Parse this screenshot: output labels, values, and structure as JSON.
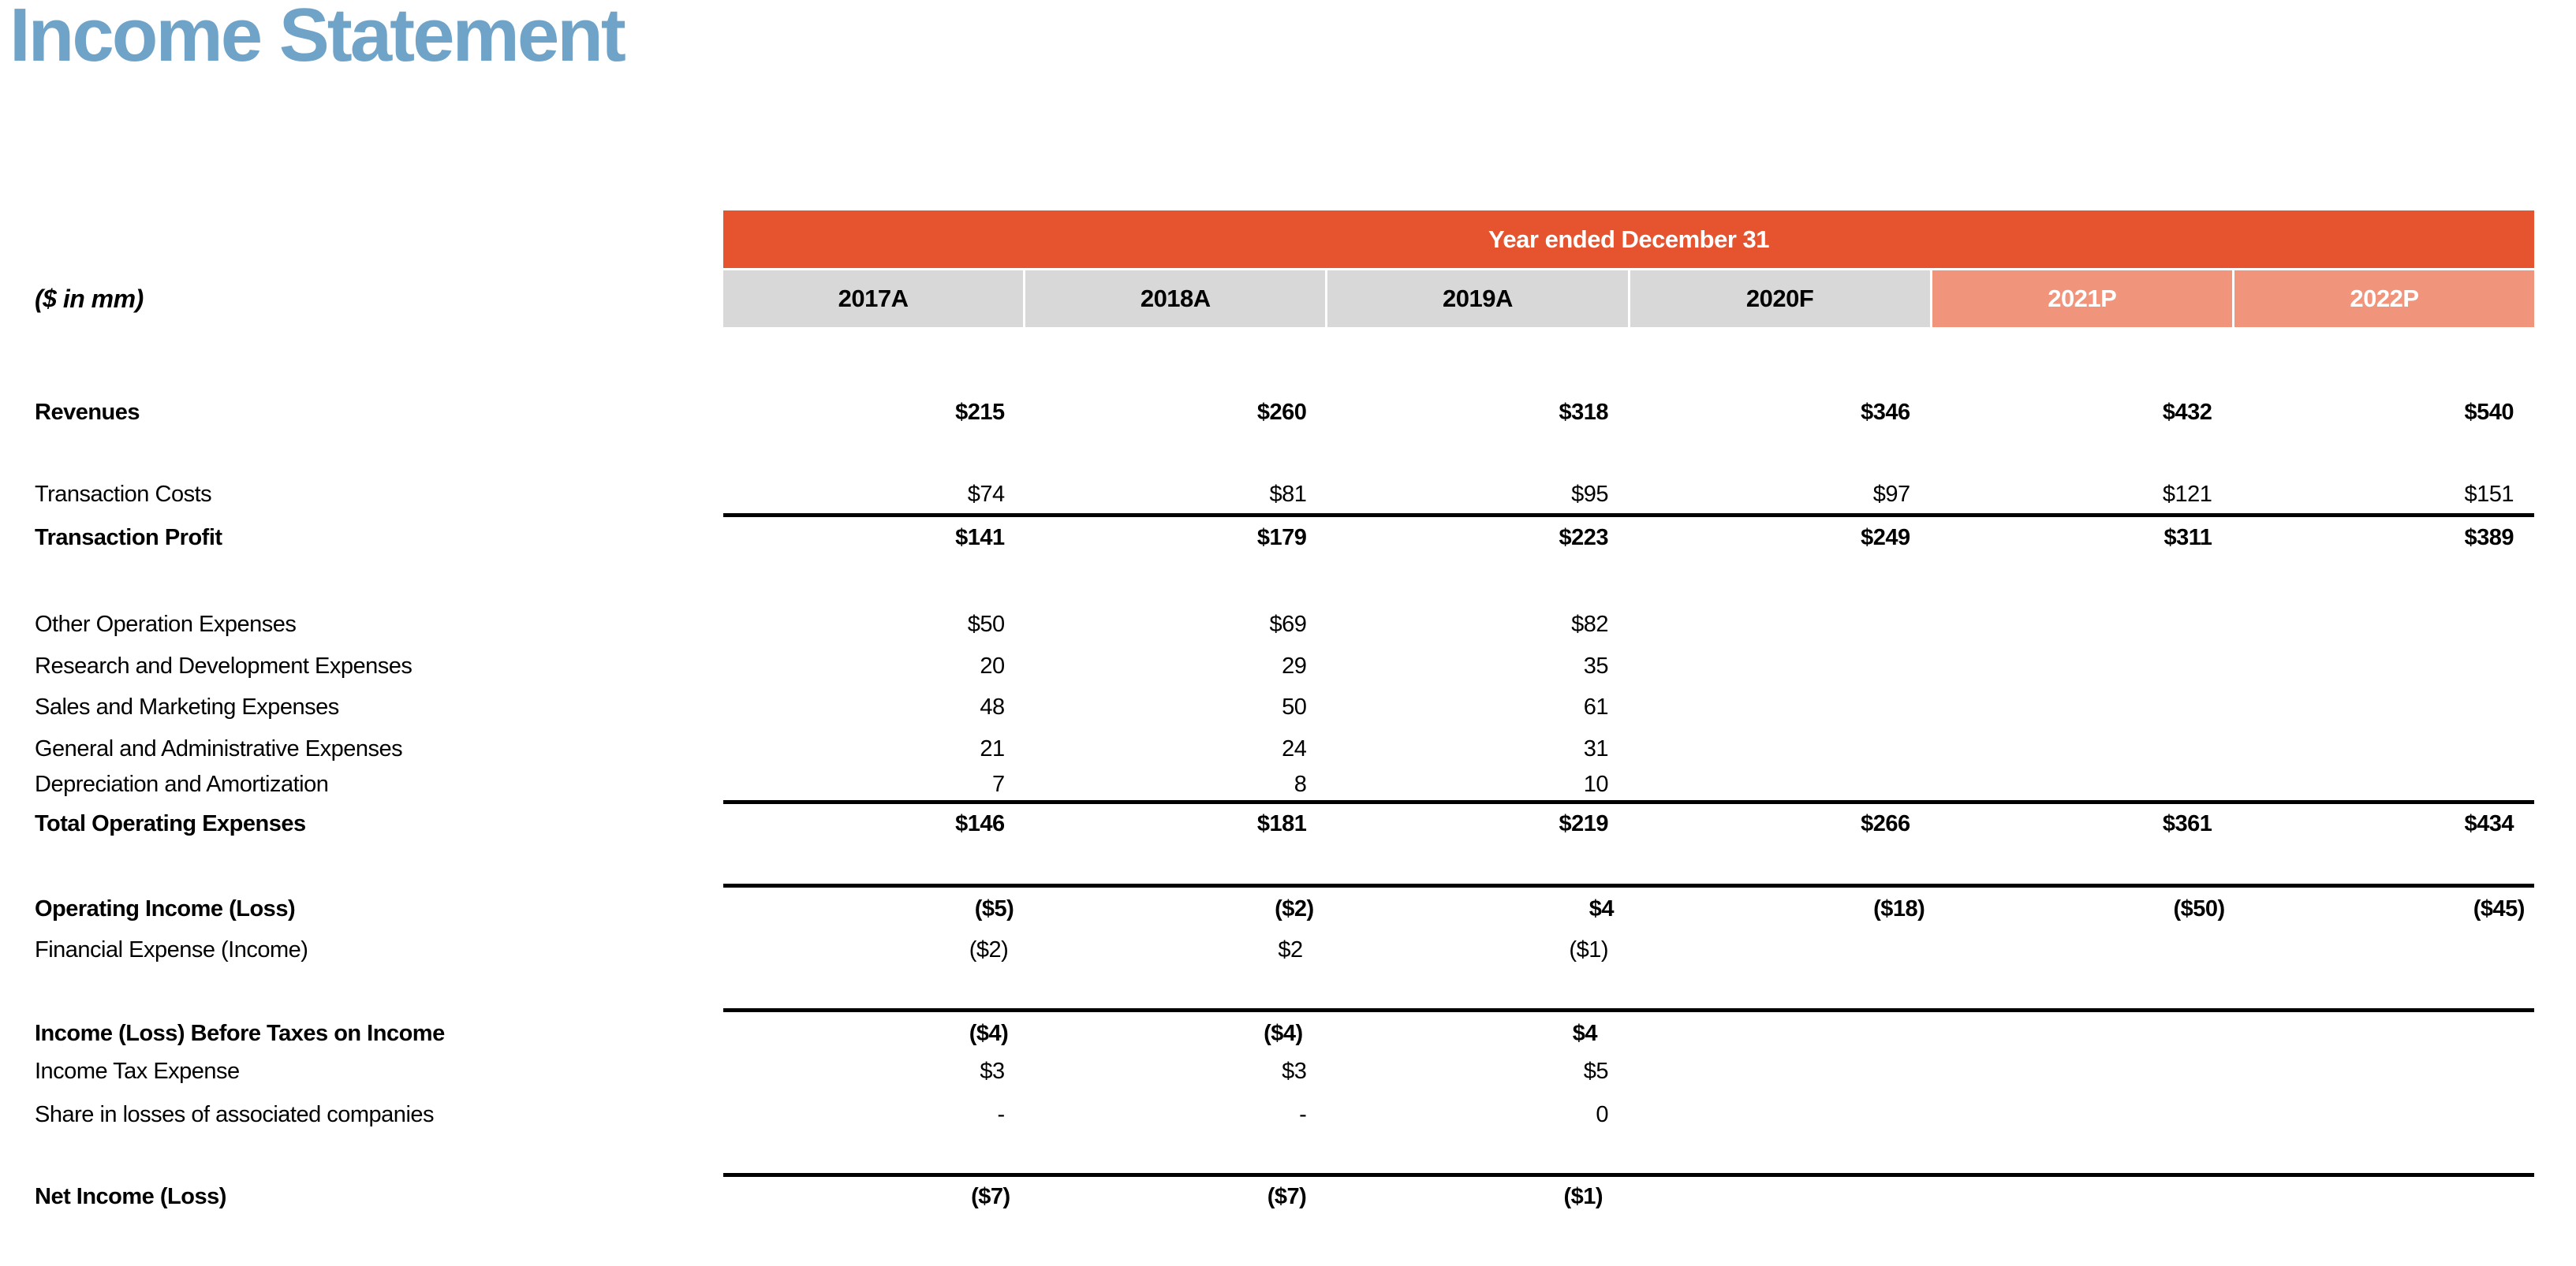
{
  "page": {
    "title": "Income Statement",
    "unit_note": "($ in mm)"
  },
  "colors": {
    "title": "#70A3C8",
    "banner_bg": "#E5532F",
    "banner_text": "#FFFFFF",
    "historical_header_bg": "#D8D8D8",
    "historical_header_text": "#000000",
    "projection_header_bg": "#F0947B",
    "projection_header_text": "#FFFFFF",
    "body_text": "#000000"
  },
  "table": {
    "banner": "Year ended December 31",
    "columns": [
      {
        "label": "2017A",
        "type": "historical"
      },
      {
        "label": "2018A",
        "type": "historical"
      },
      {
        "label": "2019A",
        "type": "historical"
      },
      {
        "label": "2020F",
        "type": "historical"
      },
      {
        "label": "2021P",
        "type": "projection"
      },
      {
        "label": "2022P",
        "type": "projection"
      }
    ],
    "rows": [
      {
        "label": "Revenues",
        "emphasis": true,
        "values": [
          "$215",
          "$260",
          "$318",
          "$346",
          "$432",
          "$540"
        ]
      },
      {
        "label": "Transaction Costs",
        "emphasis": false,
        "values": [
          "$74",
          "$81",
          "$95",
          "$97",
          "$121",
          "$151"
        ]
      },
      {
        "label": "Transaction Profit",
        "emphasis": true,
        "values": [
          "$141",
          "$179",
          "$223",
          "$249",
          "$311",
          "$389"
        ]
      },
      {
        "label": "Other Operation Expenses",
        "emphasis": false,
        "values": [
          "$50",
          "$69",
          "$82",
          "",
          "",
          ""
        ]
      },
      {
        "label": "Research and Development Expenses",
        "emphasis": false,
        "values": [
          "20",
          "29",
          "35",
          "",
          "",
          ""
        ]
      },
      {
        "label": "Sales and Marketing Expenses",
        "emphasis": false,
        "values": [
          "48",
          "50",
          "61",
          "",
          "",
          ""
        ]
      },
      {
        "label": "General and Administrative Expenses",
        "emphasis": false,
        "values": [
          "21",
          "24",
          "31",
          "",
          "",
          ""
        ]
      },
      {
        "label": "Depreciation and Amortization",
        "emphasis": false,
        "values": [
          "7",
          "8",
          "10",
          "",
          "",
          ""
        ]
      },
      {
        "label": "Total Operating Expenses",
        "emphasis": true,
        "values": [
          "$146",
          "$181",
          "$219",
          "$266",
          "$361",
          "$434"
        ]
      },
      {
        "label": "Operating Income (Loss)",
        "emphasis": true,
        "values": [
          "($5)",
          "($2)",
          "$4",
          "($18)",
          "($50)",
          "($45)"
        ]
      },
      {
        "label": "Financial Expense (Income)",
        "emphasis": false,
        "values": [
          "($2)",
          "$2",
          "($1)",
          "",
          "",
          ""
        ]
      },
      {
        "label": "Income (Loss) Before Taxes on Income",
        "emphasis": true,
        "values": [
          "($4)",
          "($4)",
          "$4",
          "",
          "",
          ""
        ]
      },
      {
        "label": "Income Tax Expense",
        "emphasis": false,
        "values": [
          "$3",
          "$3",
          "$5",
          "",
          "",
          ""
        ]
      },
      {
        "label": "Share in losses of associated companies",
        "emphasis": false,
        "values": [
          "-",
          "-",
          "0",
          "",
          "",
          ""
        ]
      },
      {
        "label": "Net Income (Loss)",
        "emphasis": true,
        "values": [
          "($7)",
          "($7)",
          "($1)",
          "",
          "",
          ""
        ]
      }
    ]
  }
}
